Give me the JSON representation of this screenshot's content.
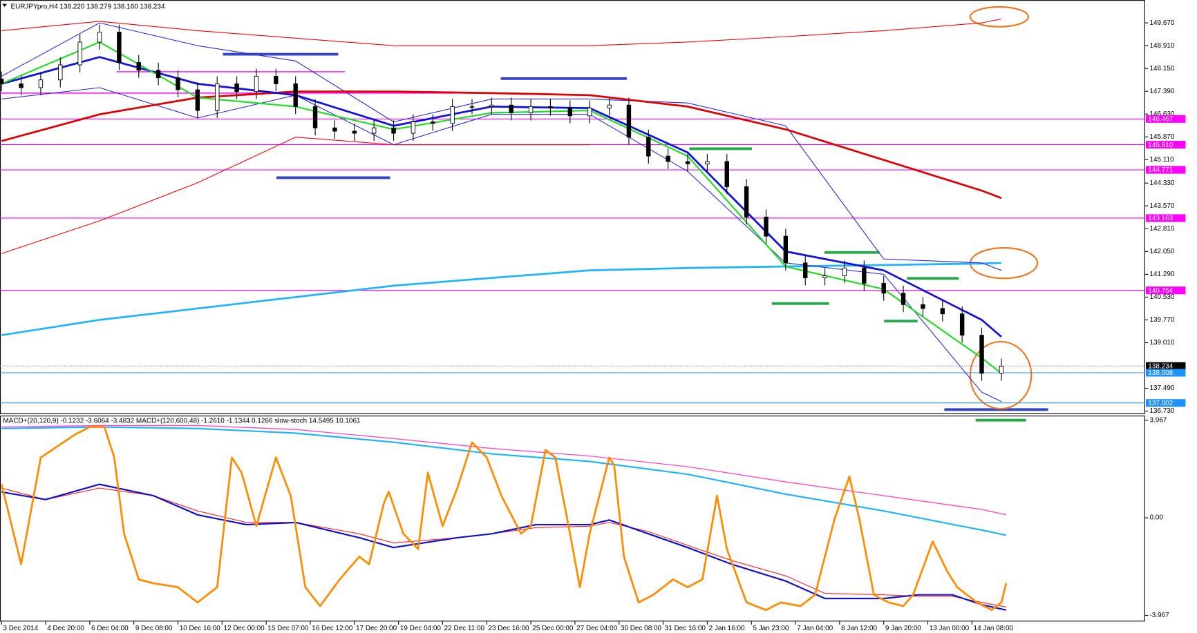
{
  "chart_data": [
    {
      "type": "candlestick",
      "title": "EURJPYpro,H4  138.220 138.279 138.160 138.234",
      "x": [
        0,
        4,
        8,
        12,
        16,
        20,
        24,
        28,
        32,
        36,
        40,
        44,
        48,
        52,
        56,
        60,
        64,
        68,
        72,
        76,
        80,
        84,
        88,
        92,
        96,
        100,
        104,
        108,
        112,
        116,
        120,
        124,
        128,
        132,
        136,
        140,
        144,
        148,
        152,
        156,
        160,
        164,
        168,
        172,
        176,
        180,
        184,
        188,
        192,
        196,
        200,
        204
      ],
      "open": [
        147.8,
        147.64,
        147.51,
        147.77,
        148.27,
        149.03,
        149.36,
        148.35,
        148.09,
        147.84,
        147.44,
        146.75,
        147.64,
        147.38,
        147.89,
        147.64,
        146.88,
        146.17,
        146.06,
        145.99,
        146.17,
        145.99,
        146.37,
        146.32,
        146.88,
        146.88,
        146.93,
        146.67,
        146.88,
        146.83,
        146.57,
        146.83,
        146.93,
        145.86,
        145.23,
        145.05,
        144.97,
        145.05,
        144.21,
        143.2,
        142.56,
        141.67,
        141.17,
        141.24,
        141.5,
        140.99,
        140.66,
        140.28,
        140.15,
        139.97,
        139.26,
        137.99
      ],
      "high": [
        148.05,
        147.89,
        148.02,
        148.52,
        149.28,
        149.61,
        149.61,
        148.6,
        148.34,
        148.09,
        147.69,
        147.89,
        147.89,
        148.14,
        148.14,
        147.89,
        147.13,
        146.42,
        146.31,
        146.42,
        146.42,
        146.62,
        146.62,
        147.13,
        147.13,
        147.18,
        147.18,
        147.13,
        147.13,
        147.08,
        147.08,
        147.18,
        147.18,
        146.11,
        145.48,
        145.3,
        145.3,
        145.3,
        144.46,
        143.45,
        142.81,
        141.92,
        141.49,
        141.75,
        141.75,
        141.24,
        140.91,
        140.53,
        140.4,
        140.22,
        139.51,
        138.48
      ],
      "low": [
        147.39,
        147.26,
        147.26,
        147.52,
        148.02,
        148.78,
        148.1,
        147.84,
        147.59,
        147.19,
        146.5,
        146.5,
        147.13,
        147.13,
        147.39,
        146.63,
        145.92,
        145.81,
        145.74,
        145.74,
        145.74,
        145.74,
        146.07,
        146.07,
        146.63,
        146.63,
        146.42,
        146.42,
        146.58,
        146.32,
        146.32,
        146.58,
        145.61,
        144.98,
        144.8,
        144.72,
        144.72,
        143.96,
        142.95,
        142.31,
        141.42,
        140.92,
        140.92,
        140.99,
        140.74,
        140.41,
        140.03,
        139.9,
        139.72,
        139.01,
        137.74,
        137.74
      ],
      "close": [
        147.64,
        147.51,
        147.77,
        148.27,
        149.03,
        149.36,
        148.35,
        148.09,
        147.84,
        147.44,
        146.75,
        147.64,
        147.38,
        147.89,
        147.64,
        146.88,
        146.17,
        146.06,
        145.99,
        146.17,
        145.99,
        146.37,
        146.32,
        146.88,
        146.88,
        146.93,
        146.67,
        146.88,
        146.83,
        146.57,
        146.83,
        146.93,
        145.86,
        145.23,
        145.05,
        144.97,
        145.05,
        144.21,
        143.2,
        142.56,
        141.67,
        141.17,
        141.24,
        141.5,
        140.99,
        140.66,
        140.28,
        140.15,
        139.97,
        139.26,
        137.99,
        138.23
      ],
      "series": [
        {
          "color": "#ff0000",
          "width": 1,
          "x": [
            0,
            20,
            40,
            60,
            80,
            100,
            120,
            140,
            160,
            180,
            200,
            204
          ],
          "values": [
            149.41,
            149.72,
            149.41,
            149.16,
            148.91,
            148.91,
            148.91,
            149.03,
            149.21,
            149.41,
            149.67,
            149.8
          ]
        },
        {
          "color": "#ff0000",
          "width": 1,
          "x": [
            0,
            20,
            40,
            60,
            80,
            100,
            120,
            140,
            160,
            180,
            200,
            204
          ],
          "values": [
            141.98,
            143.07,
            144.34,
            145.86,
            145.61,
            145.61,
            145.61,
            null,
            null,
            null,
            null,
            null
          ]
        },
        {
          "color": "#1eb4ff",
          "width": 2.5,
          "x": [
            0,
            20,
            40,
            60,
            80,
            100,
            120,
            140,
            160,
            180,
            200,
            204
          ],
          "values": [
            139.26,
            139.77,
            140.15,
            140.53,
            140.91,
            141.17,
            141.42,
            141.5,
            141.55,
            141.6,
            141.65,
            141.67
          ]
        },
        {
          "color": "#2a2ae0",
          "width": 1,
          "x": [
            0,
            20,
            40,
            60,
            80,
            100,
            120,
            140,
            160,
            180,
            200,
            204
          ],
          "values": [
            147.89,
            149.67,
            148.91,
            148.4,
            146.37,
            147.13,
            147.13,
            147.0,
            146.24,
            141.8,
            141.67,
            141.42
          ]
        },
        {
          "color": "#2a2ae0",
          "width": 1,
          "x": [
            0,
            20,
            40,
            60,
            80,
            100,
            120,
            140,
            160,
            180,
            200,
            204
          ],
          "values": [
            147.13,
            147.51,
            146.5,
            147.26,
            145.61,
            146.62,
            146.62,
            144.72,
            141.67,
            141.29,
            137.36,
            137.05
          ]
        },
        {
          "color": "#e00000",
          "width": 2.5,
          "x": [
            0,
            20,
            40,
            60,
            80,
            100,
            120,
            140,
            160,
            180,
            200,
            204
          ],
          "values": [
            145.73,
            146.62,
            147.18,
            147.38,
            147.38,
            147.33,
            147.26,
            146.88,
            146.12,
            145.1,
            144.08,
            143.83
          ]
        },
        {
          "color": "#1010e0",
          "width": 2.5,
          "x": [
            0,
            20,
            40,
            60,
            80,
            100,
            120,
            140,
            160,
            180,
            200,
            204
          ],
          "values": [
            147.64,
            148.53,
            147.64,
            147.26,
            146.24,
            146.88,
            146.83,
            145.35,
            142.05,
            141.42,
            139.77,
            139.21
          ]
        },
        {
          "color": "#22dd22",
          "width": 2,
          "x": [
            0,
            20,
            40,
            60,
            80,
            100,
            120,
            140,
            160,
            180,
            200,
            204
          ],
          "values": [
            147.64,
            149.03,
            147.18,
            146.88,
            146.12,
            146.67,
            146.75,
            145.23,
            141.55,
            140.79,
            138.5,
            137.99
          ]
        }
      ],
      "levels": [
        {
          "value": 146.467,
          "color": "#ff00ff"
        },
        {
          "value": 145.61,
          "label": "145.610",
          "color": "#ff00ff"
        },
        {
          "value": 144.771,
          "color": "#ff00ff"
        },
        {
          "value": 143.163,
          "color": "#ff00ff"
        },
        {
          "value": 140.754,
          "color": "#ff00ff"
        },
        {
          "value": 138.234,
          "color": "#000000",
          "dash": true
        },
        {
          "value": 138.008,
          "color": "#1e90ff"
        },
        {
          "value": 137.002,
          "color": "#1e90ff"
        }
      ],
      "xlim": [
        -0.31,
        233.33
      ],
      "ylim": [
        136.63,
        150.43
      ],
      "yticks": [
        {
          "value": 149.67,
          "label": "149.670"
        },
        {
          "value": 148.91,
          "label": "148.910"
        },
        {
          "value": 148.15,
          "label": "148.150"
        },
        {
          "value": 147.39,
          "label": "147.390"
        },
        {
          "value": 146.63,
          "label": "146.630"
        },
        {
          "value": 145.87,
          "label": "145.870"
        },
        {
          "value": 145.11,
          "label": "145.110"
        },
        {
          "value": 144.33,
          "label": "144.330"
        },
        {
          "value": 143.57,
          "label": "143.570"
        },
        {
          "value": 142.81,
          "label": "142.810"
        },
        {
          "value": 142.05,
          "label": "142.050"
        },
        {
          "value": 141.29,
          "label": "141.290"
        },
        {
          "value": 140.53,
          "label": "140.530"
        },
        {
          "value": 139.77,
          "label": "139.770"
        },
        {
          "value": 139.01,
          "label": "139.010"
        },
        {
          "value": 137.49,
          "label": "137.490"
        },
        {
          "value": 136.73,
          "label": "136.730"
        }
      ]
    },
    {
      "type": "line",
      "title": "MACD+(20,120,9) -0.1232 -3.6064 -3.4832  MACD+(120,600,48) -1.2610 -1.1344 0.1266  slow-stoch 14.5495 10.1061",
      "series": [
        {
          "color": "#ff44cc",
          "width": 1.2,
          "x": [
            0,
            20,
            40,
            60,
            80,
            100,
            120,
            140,
            160,
            180,
            200,
            205
          ],
          "values": [
            3.69,
            3.75,
            3.75,
            3.59,
            3.22,
            2.82,
            2.51,
            2.08,
            1.46,
            0.9,
            0.34,
            0.12
          ]
        },
        {
          "color": "#1eb4ff",
          "width": 2,
          "x": [
            0,
            20,
            40,
            60,
            80,
            100,
            120,
            140,
            160,
            180,
            200,
            205
          ],
          "values": [
            3.63,
            3.69,
            3.63,
            3.44,
            3.07,
            2.6,
            2.29,
            1.77,
            0.96,
            0.28,
            -0.5,
            -0.71
          ]
        },
        {
          "color": "#ff2020",
          "width": 1,
          "x": [
            0,
            9,
            20,
            31,
            40,
            50,
            60,
            73,
            80,
            93,
            100,
            109,
            120,
            124,
            132,
            140,
            149,
            160,
            168,
            180,
            187,
            194,
            200,
            205
          ],
          "values": [
            1.21,
            0.74,
            1.21,
            0.9,
            0.28,
            -0.19,
            -0.19,
            -0.65,
            -1.02,
            -0.81,
            -0.65,
            -0.4,
            -0.34,
            -0.19,
            -0.56,
            -1.12,
            -1.74,
            -2.36,
            -3.07,
            -3.13,
            -3.19,
            -3.19,
            -3.44,
            -3.63
          ]
        },
        {
          "color": "#1010d0",
          "width": 2,
          "x": [
            0,
            9,
            20,
            31,
            40,
            50,
            60,
            73,
            80,
            93,
            100,
            109,
            120,
            124,
            132,
            140,
            149,
            160,
            168,
            180,
            187,
            194,
            200,
            205
          ],
          "values": [
            1.05,
            0.74,
            1.36,
            0.9,
            0.12,
            -0.28,
            -0.19,
            -0.81,
            -1.21,
            -0.81,
            -0.65,
            -0.28,
            -0.28,
            -0.09,
            -0.65,
            -1.21,
            -1.89,
            -2.57,
            -3.28,
            -3.28,
            -3.13,
            -3.13,
            -3.53,
            -3.75
          ]
        },
        {
          "color": "#ff8c00",
          "width": 2.5,
          "axis": "y2",
          "x": [
            0,
            4,
            8,
            15,
            18,
            21,
            23,
            25,
            28,
            31,
            36,
            40,
            44,
            47,
            49,
            52,
            56,
            59,
            62,
            65,
            69,
            73,
            75,
            78,
            79,
            82,
            85,
            87,
            90,
            93,
            96,
            99,
            102,
            106,
            108,
            111,
            113,
            116,
            118,
            120,
            124,
            125,
            127,
            130,
            133,
            137,
            140,
            143,
            146,
            148,
            152,
            156,
            159,
            163,
            166,
            170,
            173,
            175,
            178,
            181,
            184,
            186,
            190,
            193,
            195,
            199,
            202,
            204,
            205
          ],
          "values": [
            67.9,
            24.7,
            82.3,
            94.7,
            98.8,
            98.8,
            82.3,
            41.2,
            16.5,
            14.4,
            12.3,
            4.1,
            12.3,
            82.3,
            74.1,
            45.3,
            82.3,
            61.7,
            12.3,
            2.1,
            16.5,
            28.8,
            24.7,
            57.6,
            63.8,
            41.2,
            32.9,
            74.1,
            45.3,
            65.8,
            90.5,
            82.3,
            61.7,
            41.2,
            45.3,
            86.4,
            82.3,
            41.2,
            12.3,
            41.2,
            82.3,
            78.2,
            28.8,
            4.1,
            8.2,
            16.5,
            12.3,
            16.5,
            61.7,
            32.9,
            4.1,
            0,
            4.1,
            2.1,
            8.2,
            49.4,
            72.0,
            49.4,
            8.2,
            4.1,
            2.1,
            8.2,
            37.0,
            20.6,
            12.3,
            4.1,
            0,
            4.1,
            14.4
          ]
        }
      ],
      "xlim": [
        -0.31,
        233.33
      ],
      "ylim": [
        -4.215,
        4.153
      ],
      "y2lim": [
        -6.2,
        104.9
      ],
      "yticks": [
        3.967,
        {
          "value": 0,
          "label": "0.00"
        },
        -3.967
      ],
      "xticks": [
        {
          "value": 0,
          "label": "3 Dec 2014"
        },
        {
          "value": 9,
          "label": "4 Dec 20:00"
        },
        {
          "value": 18,
          "label": "6 Dec 04:00"
        },
        {
          "value": 27,
          "label": "9 Dec 08:00"
        },
        {
          "value": 36,
          "label": "10 Dec 16:00"
        },
        {
          "value": 45,
          "label": "12 Dec 00:00"
        },
        {
          "value": 54,
          "label": "15 Dec 07:00"
        },
        {
          "value": 63,
          "label": "16 Dec 12:00"
        },
        {
          "value": 72,
          "label": "17 Dec 20:00"
        },
        {
          "value": 81,
          "label": "19 Dec 04:00"
        },
        {
          "value": 90,
          "label": "22 Dec 11:00"
        },
        {
          "value": 99,
          "label": "23 Dec 16:00"
        },
        {
          "value": 108,
          "label": "25 Dec 00:00"
        },
        {
          "value": 117,
          "label": "27 Dec 04:00"
        },
        {
          "value": 126,
          "label": "30 Dec 08:00"
        },
        {
          "value": 135,
          "label": "31 Dec 16:00"
        },
        {
          "value": 144,
          "label": "2 Jan 16:00"
        },
        {
          "value": 153,
          "label": "5 Jan 23:00"
        },
        {
          "value": 162,
          "label": "7 Jan 04:00"
        },
        {
          "value": 171,
          "label": "8 Jan 12:00"
        },
        {
          "value": 180,
          "label": "9 Jan 20:00"
        },
        {
          "value": 189,
          "label": "13 Jan 00:00"
        },
        {
          "value": 198,
          "label": "14 Jan 08:00"
        }
      ]
    }
  ]
}
